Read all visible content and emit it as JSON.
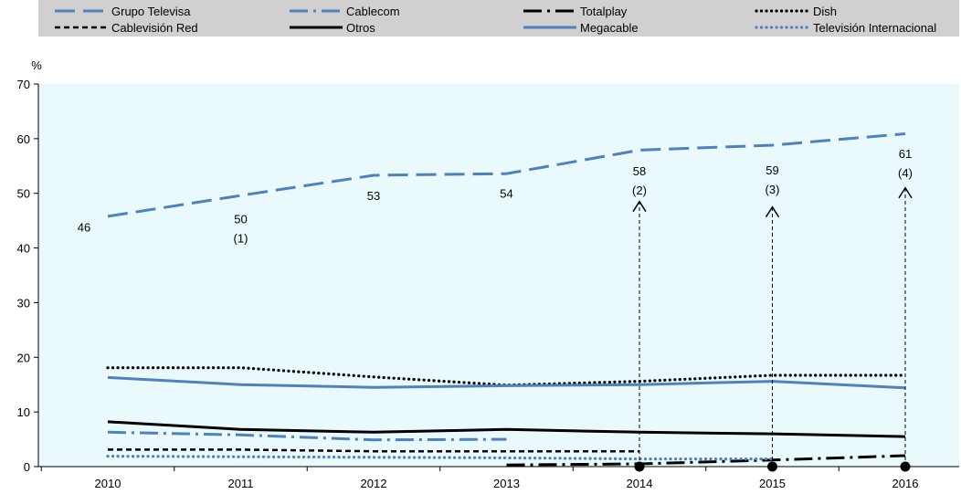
{
  "chart_data": {
    "type": "line",
    "ylabel": "%",
    "ylim": [
      0,
      70
    ],
    "yticks": [
      0,
      10,
      20,
      30,
      40,
      50,
      60,
      70
    ],
    "x": [
      "2010",
      "2011",
      "2012",
      "2013",
      "2014",
      "2015",
      "2016"
    ],
    "grid": false,
    "legend_position": "top",
    "colors": {
      "plot_background": "#eaf9fb",
      "legend_background": "#d0d0d0",
      "blue": "#4f81bd",
      "black": "#000000"
    },
    "series": [
      {
        "name": "Grupo Televisa",
        "style": "long-dash",
        "color": "#4f81bd",
        "values": [
          45.8,
          49.6,
          53.3,
          53.6,
          57.9,
          58.8,
          60.9
        ]
      },
      {
        "name": "Cablecom",
        "style": "dash-dot",
        "color": "#4f81bd",
        "values": [
          6.3,
          5.8,
          4.9,
          5.0,
          null,
          null,
          null
        ]
      },
      {
        "name": "Totalplay",
        "style": "dash-dot",
        "color": "#000000",
        "values": [
          null,
          null,
          null,
          0.3,
          0.5,
          1.2,
          2.0
        ]
      },
      {
        "name": "Dish",
        "style": "dotted",
        "color": "#000000",
        "values": [
          18.1,
          18.1,
          16.4,
          14.9,
          15.6,
          16.7,
          16.7
        ]
      },
      {
        "name": "Cablevisión Red",
        "style": "short-dash",
        "color": "#000000",
        "values": [
          3.1,
          3.1,
          2.8,
          2.8,
          2.8,
          null,
          null
        ]
      },
      {
        "name": "Otros",
        "style": "solid",
        "color": "#000000",
        "values": [
          8.2,
          6.8,
          6.3,
          6.8,
          6.3,
          6.0,
          5.5
        ]
      },
      {
        "name": "Megacable",
        "style": "solid",
        "color": "#4f81bd",
        "values": [
          16.3,
          15.0,
          14.5,
          14.8,
          15.0,
          15.6,
          14.4
        ]
      },
      {
        "name": "Televisión Internacional",
        "style": "dotted",
        "color": "#4f81bd",
        "values": [
          1.9,
          1.8,
          1.7,
          1.6,
          1.4,
          1.4,
          null
        ]
      }
    ],
    "data_labels": [
      {
        "x": "2010",
        "lines": [
          "46"
        ],
        "y": 43
      },
      {
        "x": "2011",
        "lines": [
          "50",
          "(1)"
        ],
        "y": 44.5
      },
      {
        "x": "2012",
        "lines": [
          "53"
        ],
        "y": 48.8
      },
      {
        "x": "2013",
        "lines": [
          "54"
        ],
        "y": 49.2
      },
      {
        "x": "2014",
        "lines": [
          "58",
          "(2)"
        ],
        "y": 53.3
      },
      {
        "x": "2015",
        "lines": [
          "59",
          "(3)"
        ],
        "y": 53.5
      },
      {
        "x": "2016",
        "lines": [
          "61",
          "(4)"
        ],
        "y": 56.5
      }
    ],
    "annotations": [
      {
        "x": "2014",
        "from": 0,
        "to": 48.5
      },
      {
        "x": "2015",
        "from": 0,
        "to": 47.5
      },
      {
        "x": "2016",
        "from": 0,
        "to": 51
      }
    ]
  }
}
